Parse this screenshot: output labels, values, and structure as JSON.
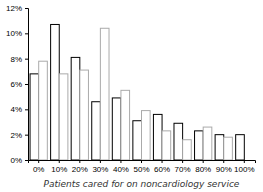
{
  "chart_data": {
    "type": "bar",
    "categories": [
      "0%",
      "10%",
      "20%",
      "30%",
      "40%",
      "50%",
      "60%",
      "70%",
      "80%",
      "90%",
      "100%"
    ],
    "series": [
      {
        "color": "#000000",
        "values": [
          6.8,
          10.7,
          8.1,
          4.6,
          4.9,
          3.1,
          3.6,
          2.9,
          2.3,
          2.0,
          2.0
        ]
      },
      {
        "color": "#aaaaaa",
        "values": [
          7.8,
          6.8,
          7.1,
          10.4,
          5.5,
          3.9,
          2.3,
          1.6,
          2.6,
          1.8,
          null
        ]
      }
    ],
    "xlabel": "Patients cared for on noncardiology service",
    "ylim": [
      0,
      12
    ],
    "yticks": [
      {
        "value": 0,
        "label": "0%"
      },
      {
        "value": 2,
        "label": "2%"
      },
      {
        "value": 4,
        "label": "4%"
      },
      {
        "value": 6,
        "label": "6%"
      },
      {
        "value": 8,
        "label": "8%"
      },
      {
        "value": 10,
        "label": "10%"
      },
      {
        "value": 12,
        "label": "12%"
      }
    ]
  }
}
